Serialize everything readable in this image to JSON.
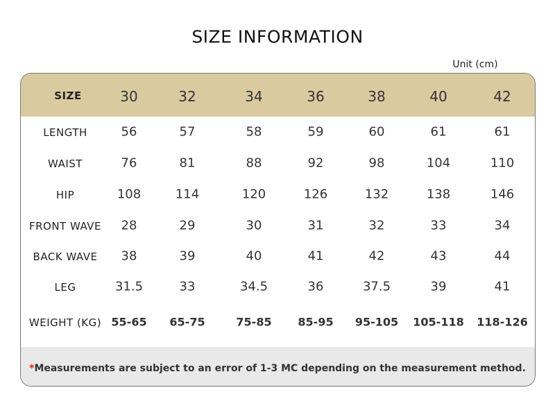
{
  "title": "SIZE INFORMATION",
  "unit": "Unit (cm)",
  "header": {
    "label": "SIZE",
    "sizes": [
      "30",
      "32",
      "34",
      "36",
      "38",
      "40",
      "42"
    ]
  },
  "rows": [
    {
      "label": "LENGTH",
      "values": [
        "56",
        "57",
        "58",
        "59",
        "60",
        "61",
        "61"
      ]
    },
    {
      "label": "WAIST",
      "values": [
        "76",
        "81",
        "88",
        "92",
        "98",
        "104",
        "110"
      ]
    },
    {
      "label": "HIP",
      "values": [
        "108",
        "114",
        "120",
        "126",
        "132",
        "138",
        "146"
      ]
    },
    {
      "label": "FRONT WAVE",
      "values": [
        "28",
        "29",
        "30",
        "31",
        "32",
        "33",
        "34"
      ]
    },
    {
      "label": "BACK WAVE",
      "values": [
        "38",
        "39",
        "40",
        "41",
        "42",
        "43",
        "44"
      ]
    },
    {
      "label": "LEG",
      "values": [
        "31.5",
        "33",
        "34.5",
        "36",
        "37.5",
        "39",
        "41"
      ]
    },
    {
      "label": "WEIGHT (KG)",
      "values": [
        "55-65",
        "65-75",
        "75-85",
        "85-95",
        "95-105",
        "105-118",
        "118-126"
      ]
    }
  ],
  "note": {
    "marker": "*",
    "text": "Measurements are subject to an error of 1-3 MC depending on the measurement method."
  }
}
